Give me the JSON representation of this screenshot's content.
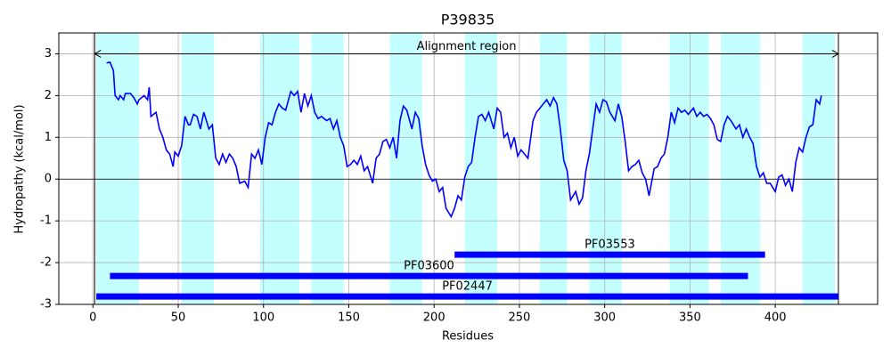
{
  "chart_data": {
    "type": "line",
    "title": "P39835",
    "xlabel": "Residues",
    "ylabel": "Hydropathy (kcal/mol)",
    "xlim": [
      -20,
      460
    ],
    "ylim": [
      -3,
      3.5
    ],
    "xticks": [
      0,
      50,
      100,
      150,
      200,
      250,
      300,
      350,
      400
    ],
    "yticks": [
      -3,
      -2,
      -1,
      0,
      1,
      2,
      3
    ],
    "grid": true,
    "color": "#0000ff",
    "x": [
      8,
      10,
      12,
      13,
      15,
      16,
      18,
      19,
      22,
      24,
      26,
      27,
      30,
      32,
      33,
      34,
      37,
      39,
      41,
      43,
      45,
      47,
      48,
      50,
      52,
      54,
      56,
      57,
      59,
      61,
      63,
      65,
      68,
      70,
      72,
      74,
      76,
      78,
      80,
      82,
      84,
      86,
      89,
      91,
      93,
      95,
      97,
      99,
      101,
      103,
      105,
      107,
      109,
      111,
      113,
      116,
      118,
      120,
      122,
      124,
      126,
      128,
      130,
      132,
      134,
      137,
      139,
      141,
      143,
      145,
      147,
      149,
      151,
      153,
      155,
      157,
      159,
      161,
      164,
      166,
      168,
      170,
      172,
      174,
      176,
      178,
      180,
      182,
      184,
      187,
      189,
      191,
      193,
      195,
      197,
      199,
      201,
      203,
      205,
      207,
      210,
      212,
      214,
      216,
      218,
      220,
      222,
      224,
      226,
      228,
      230,
      232,
      235,
      237,
      239,
      241,
      243,
      245,
      247,
      249,
      251,
      253,
      255,
      258,
      260,
      262,
      264,
      266,
      268,
      270,
      272,
      274,
      276,
      278,
      280,
      283,
      285,
      287,
      289,
      291,
      293,
      295,
      297,
      299,
      301,
      303,
      306,
      308,
      310,
      312,
      314,
      316,
      318,
      320,
      322,
      324,
      326,
      329,
      331,
      333,
      335,
      337,
      339,
      341,
      343,
      345,
      347,
      349,
      352,
      354,
      356,
      358,
      360,
      362,
      364,
      366,
      368,
      370,
      372,
      374,
      377,
      379,
      381,
      383,
      385,
      387,
      389,
      391,
      393,
      395,
      397,
      400,
      402,
      404,
      406,
      408,
      410,
      412,
      414,
      416,
      418,
      420,
      422,
      424,
      426,
      427
    ],
    "values": [
      2.78,
      2.8,
      2.6,
      2.0,
      1.9,
      2.0,
      1.9,
      2.05,
      2.05,
      1.95,
      1.8,
      1.9,
      2.0,
      1.9,
      2.2,
      1.5,
      1.6,
      1.2,
      1.0,
      0.7,
      0.6,
      0.3,
      0.65,
      0.55,
      0.8,
      1.5,
      1.3,
      1.3,
      1.55,
      1.5,
      1.2,
      1.6,
      1.2,
      1.3,
      0.5,
      0.35,
      0.6,
      0.4,
      0.6,
      0.5,
      0.3,
      -0.1,
      -0.05,
      -0.2,
      0.6,
      0.5,
      0.7,
      0.35,
      1.0,
      1.35,
      1.3,
      1.6,
      1.8,
      1.7,
      1.65,
      2.1,
      2.0,
      2.1,
      1.6,
      2.05,
      1.75,
      2.0,
      1.6,
      1.45,
      1.5,
      1.4,
      1.45,
      1.2,
      1.4,
      1.0,
      0.8,
      0.3,
      0.35,
      0.45,
      0.35,
      0.55,
      0.2,
      0.3,
      -0.1,
      0.5,
      0.6,
      0.9,
      0.95,
      0.75,
      1.0,
      0.5,
      1.4,
      1.75,
      1.65,
      1.2,
      1.6,
      1.45,
      0.8,
      0.35,
      0.1,
      -0.05,
      0.0,
      -0.3,
      -0.2,
      -0.7,
      -0.9,
      -0.7,
      -0.4,
      -0.5,
      0.05,
      0.3,
      0.4,
      1.0,
      1.5,
      1.55,
      1.4,
      1.6,
      1.2,
      1.7,
      1.6,
      1.0,
      1.1,
      0.75,
      1.0,
      0.55,
      0.7,
      0.6,
      0.5,
      1.4,
      1.6,
      1.7,
      1.8,
      1.9,
      1.75,
      1.95,
      1.8,
      1.2,
      0.45,
      0.2,
      -0.5,
      -0.3,
      -0.6,
      -0.45,
      0.2,
      0.6,
      1.2,
      1.8,
      1.6,
      1.9,
      1.85,
      1.6,
      1.4,
      1.8,
      1.5,
      0.9,
      0.2,
      0.3,
      0.35,
      0.45,
      0.15,
      0.0,
      -0.4,
      0.25,
      0.3,
      0.5,
      0.6,
      1.0,
      1.6,
      1.35,
      1.7,
      1.6,
      1.65,
      1.55,
      1.7,
      1.5,
      1.6,
      1.5,
      1.55,
      1.45,
      1.3,
      0.95,
      0.9,
      1.3,
      1.5,
      1.4,
      1.2,
      1.3,
      1.0,
      1.2,
      1.0,
      0.85,
      0.3,
      0.05,
      0.15,
      -0.1,
      -0.1,
      -0.3,
      0.05,
      0.1,
      -0.15,
      0.0,
      -0.3,
      0.4,
      0.75,
      0.65,
      1.0,
      1.25,
      1.3,
      1.9,
      1.8,
      2.0
    ],
    "bands": [
      [
        2,
        27
      ],
      [
        52,
        71
      ],
      [
        98,
        121
      ],
      [
        128,
        147
      ],
      [
        174,
        193
      ],
      [
        218,
        237
      ],
      [
        262,
        278
      ],
      [
        291,
        310
      ],
      [
        338,
        361
      ],
      [
        368,
        391
      ],
      [
        416,
        435
      ]
    ],
    "band_color": "#c4ffff",
    "vlines": [
      1,
      437
    ],
    "hline": 0,
    "region": {
      "label": "Alignment region",
      "start": 1,
      "end": 437,
      "y": 3
    },
    "domains": [
      {
        "name": "PF03553",
        "start": 212,
        "end": 394,
        "y": -1.81
      },
      {
        "name": "PF03600",
        "start": 10,
        "end": 384,
        "y": -2.32
      },
      {
        "name": "PF02447",
        "start": 2,
        "end": 437,
        "y": -2.81
      }
    ]
  }
}
